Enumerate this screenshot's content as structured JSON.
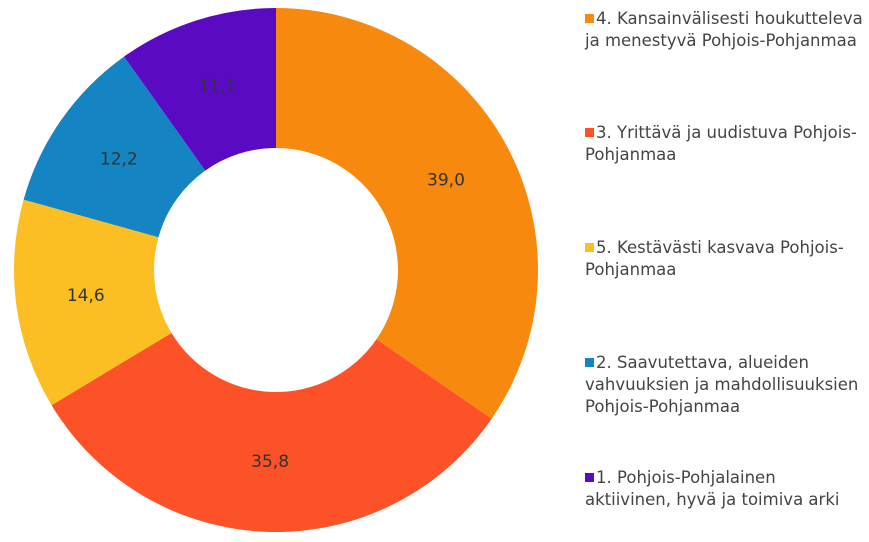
{
  "chart_data": {
    "type": "donut",
    "categories": [
      "4. Kansainvälisesti houkutteleva ja menestyvä Pohjois-Pohjanmaa",
      "3. Yrittävä ja uudistuva Pohjois-Pohjanmaa",
      "5. Kestävästi kasvava Pohjois-Pohjanmaa",
      "2. Saavutettava, alueiden vahvuuksien ja mahdollisuuksien Pohjois-Pohjanmaa",
      "1. Pohjois-Pohjalainen aktiivinen, hyvä ja toimiva arki"
    ],
    "values": [
      39.0,
      35.8,
      14.6,
      12.2,
      11.1
    ],
    "value_labels": [
      "39,0",
      "35,8",
      "14,6",
      "12,2",
      "11,1"
    ],
    "colors": [
      "#f7890f",
      "#fd5228",
      "#fbbf24",
      "#1584c2",
      "#5b0ac4"
    ],
    "legend": "right"
  }
}
